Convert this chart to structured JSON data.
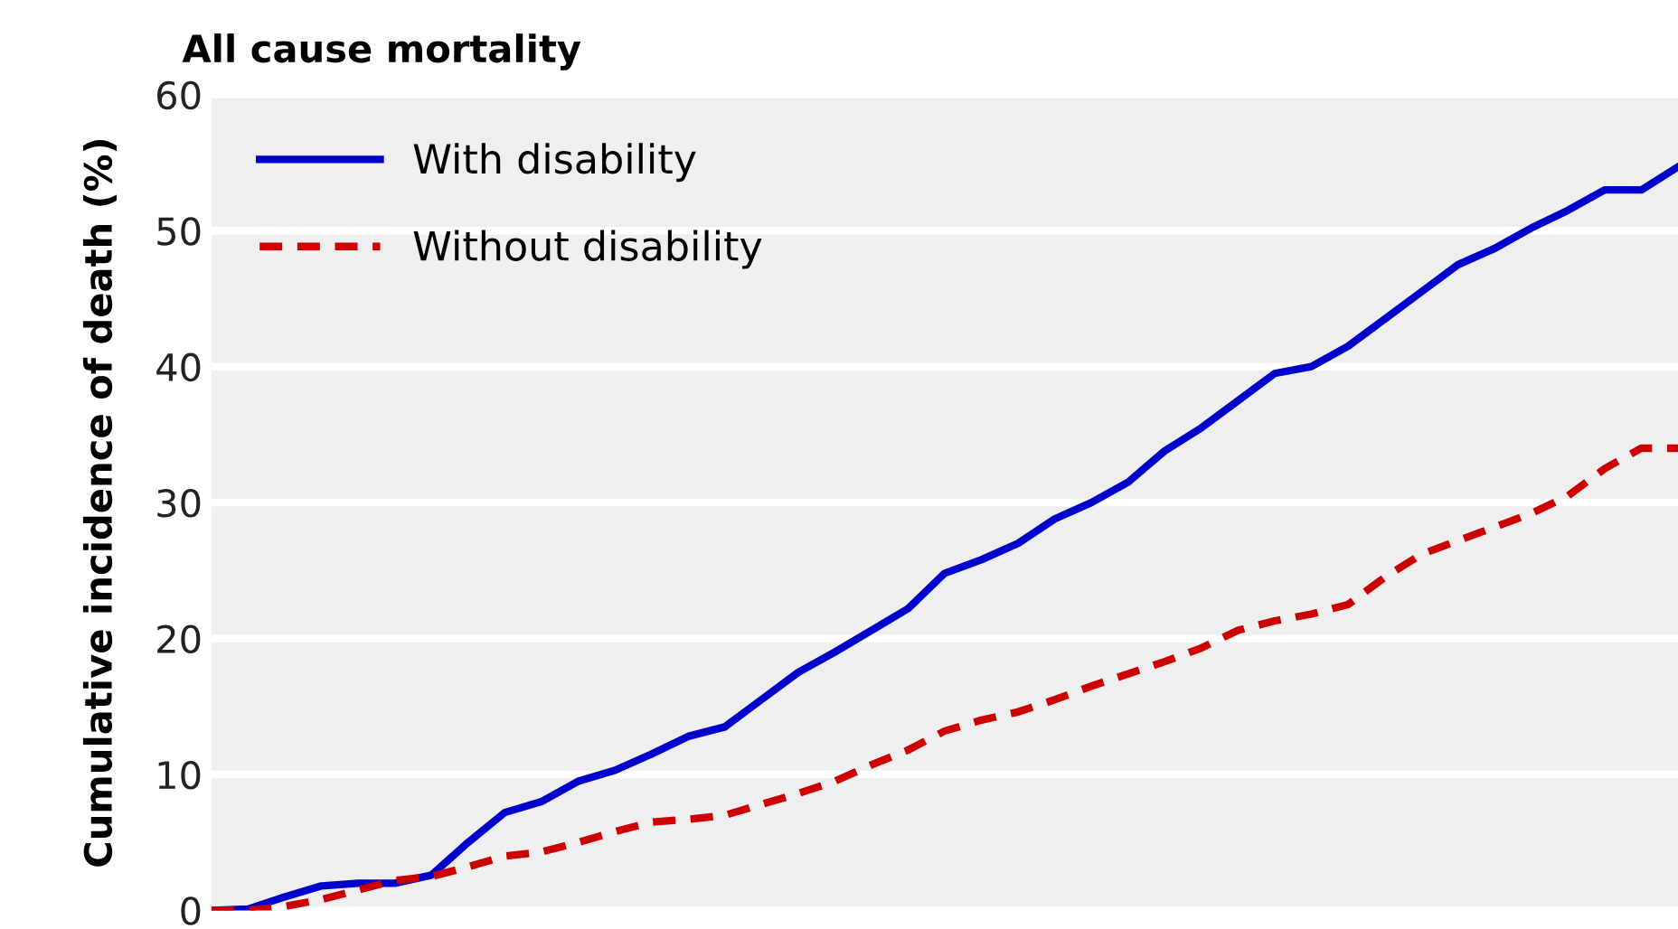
{
  "chart_data": {
    "type": "line",
    "title": "All cause mortality",
    "ylabel": "Cumulative incidence of death (%)",
    "categories": [
      null,
      null,
      null,
      null,
      null,
      null,
      null,
      null,
      null,
      null,
      null,
      null,
      null,
      null,
      null,
      null,
      null,
      null,
      null,
      null,
      null,
      null,
      null,
      null,
      null,
      null,
      null,
      null,
      null,
      null,
      null,
      null,
      null,
      null,
      null,
      null,
      null,
      null,
      null,
      null,
      null
    ],
    "series": [
      {
        "name": "With disability",
        "color": "#0000cc",
        "line_style": "solid",
        "values": [
          0,
          0.1,
          1.0,
          1.8,
          2.0,
          2.0,
          2.6,
          5.0,
          7.2,
          8.0,
          9.5,
          10.3,
          11.5,
          12.8,
          13.5,
          15.5,
          17.5,
          19.0,
          20.6,
          22.2,
          24.8,
          25.8,
          27.0,
          28.8,
          30.0,
          31.5,
          33.8,
          35.5,
          37.5,
          39.5,
          40.0,
          41.5,
          43.5,
          45.5,
          47.5,
          48.7,
          50.2,
          51.5,
          53.0,
          53.0,
          54.7
        ]
      },
      {
        "name": "Without disability",
        "color": "#cc0000",
        "line_style": "dashed",
        "values": [
          0,
          0,
          0.3,
          0.8,
          1.5,
          2.2,
          2.5,
          3.2,
          4.0,
          4.3,
          5.0,
          5.8,
          6.5,
          6.7,
          7.0,
          7.8,
          8.6,
          9.5,
          10.7,
          11.8,
          13.2,
          14.0,
          14.6,
          15.5,
          16.5,
          17.4,
          18.3,
          19.3,
          20.6,
          21.3,
          21.8,
          22.5,
          24.5,
          26.2,
          27.2,
          28.2,
          29.2,
          30.5,
          32.5,
          34.0,
          34.0
        ]
      }
    ],
    "ylim": [
      0,
      60
    ],
    "yticks": [
      0,
      10,
      20,
      30,
      40,
      50,
      60
    ],
    "grid": "y",
    "legend": "top left",
    "tick_labels": "y"
  }
}
